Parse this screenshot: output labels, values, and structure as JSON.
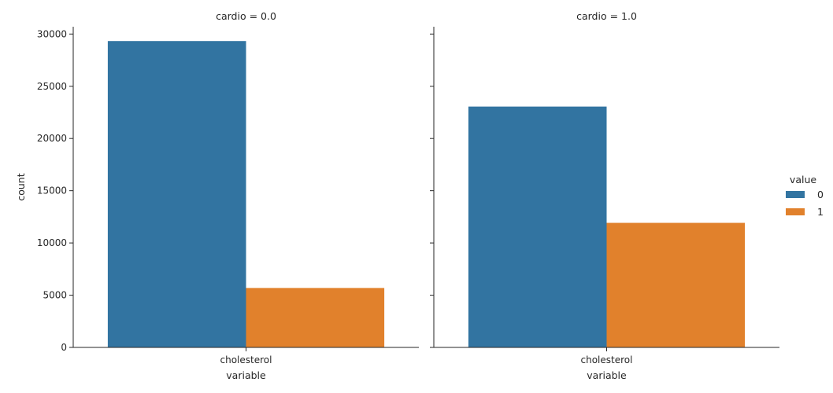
{
  "chart_data": {
    "type": "bar",
    "facet_var": "cardio",
    "y_ticks": [
      0,
      5000,
      10000,
      15000,
      20000,
      25000,
      30000
    ],
    "ylim": [
      0,
      30700
    ],
    "legend": {
      "title": "value",
      "placement": "right",
      "entries": [
        "0",
        "1"
      ]
    },
    "colors": {
      "0": "#3274a1",
      "1": "#e1812c"
    },
    "ylabel": "count",
    "panels": [
      {
        "title": "cardio = 0.0",
        "xlabel": "variable",
        "categories": [
          "cholesterol"
        ],
        "series": [
          {
            "name": "0",
            "values": [
              29330
            ]
          },
          {
            "name": "1",
            "values": [
              5691
            ]
          }
        ]
      },
      {
        "title": "cardio = 1.0",
        "xlabel": "variable",
        "categories": [
          "cholesterol"
        ],
        "series": [
          {
            "name": "0",
            "values": [
              23055
            ]
          },
          {
            "name": "1",
            "values": [
              11924
            ]
          }
        ]
      }
    ]
  }
}
